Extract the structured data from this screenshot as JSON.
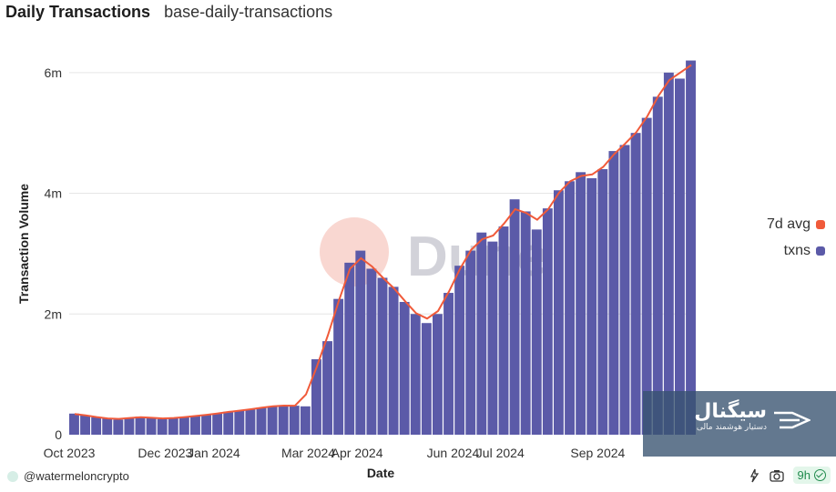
{
  "header": {
    "title": "Daily Transactions",
    "subtitle": "base-daily-transactions"
  },
  "chart_data": {
    "type": "bar",
    "xlabel": "Date",
    "ylabel": "Transaction Volume",
    "x_range": [
      "2023-10-01",
      "2024-10-31"
    ],
    "ylim": [
      0,
      6600000
    ],
    "y_ticks": [
      0,
      2000000,
      4000000,
      6000000
    ],
    "y_tick_labels": [
      "0",
      "2m",
      "4m",
      "6m"
    ],
    "x_tick_dates": [
      "2023-10-01",
      "2023-12-01",
      "2024-01-01",
      "2024-03-01",
      "2024-04-01",
      "2024-06-01",
      "2024-07-01",
      "2024-09-01"
    ],
    "x_tick_labels": [
      "Oct 2023",
      "Dec 2023",
      "Jan 2024",
      "Mar 2024",
      "Apr 2024",
      "Jun 2024",
      "Jul 2024",
      "Sep 2024"
    ],
    "grid": true,
    "legend_position": "right",
    "series": [
      {
        "name": "7d avg",
        "type": "line",
        "color": "#f05a3a"
      },
      {
        "name": "txns",
        "type": "bar",
        "color": "#5b5aa8"
      }
    ],
    "weekly_txns": [
      [
        "2023-10-01",
        350000
      ],
      [
        "2023-10-08",
        320000
      ],
      [
        "2023-10-15",
        290000
      ],
      [
        "2023-10-22",
        270000
      ],
      [
        "2023-10-29",
        250000
      ],
      [
        "2023-11-05",
        280000
      ],
      [
        "2023-11-12",
        300000
      ],
      [
        "2023-11-19",
        280000
      ],
      [
        "2023-11-26",
        260000
      ],
      [
        "2023-12-03",
        280000
      ],
      [
        "2023-12-10",
        290000
      ],
      [
        "2023-12-17",
        310000
      ],
      [
        "2023-12-24",
        330000
      ],
      [
        "2023-12-31",
        350000
      ],
      [
        "2024-01-07",
        380000
      ],
      [
        "2024-01-14",
        400000
      ],
      [
        "2024-01-21",
        420000
      ],
      [
        "2024-01-28",
        450000
      ],
      [
        "2024-02-04",
        470000
      ],
      [
        "2024-02-11",
        490000
      ],
      [
        "2024-02-18",
        480000
      ],
      [
        "2024-02-25",
        470000
      ],
      [
        "2024-03-03",
        1250000
      ],
      [
        "2024-03-10",
        1550000
      ],
      [
        "2024-03-17",
        2250000
      ],
      [
        "2024-03-24",
        2850000
      ],
      [
        "2024-03-31",
        3050000
      ],
      [
        "2024-04-07",
        2750000
      ],
      [
        "2024-04-14",
        2600000
      ],
      [
        "2024-04-21",
        2450000
      ],
      [
        "2024-04-28",
        2200000
      ],
      [
        "2024-05-05",
        2000000
      ],
      [
        "2024-05-12",
        1850000
      ],
      [
        "2024-05-19",
        2000000
      ],
      [
        "2024-05-26",
        2350000
      ],
      [
        "2024-06-02",
        2800000
      ],
      [
        "2024-06-09",
        3050000
      ],
      [
        "2024-06-16",
        3350000
      ],
      [
        "2024-06-23",
        3200000
      ],
      [
        "2024-06-30",
        3450000
      ],
      [
        "2024-07-07",
        3900000
      ],
      [
        "2024-07-14",
        3700000
      ],
      [
        "2024-07-21",
        3400000
      ],
      [
        "2024-07-28",
        3750000
      ],
      [
        "2024-08-04",
        4050000
      ],
      [
        "2024-08-11",
        4200000
      ],
      [
        "2024-08-18",
        4350000
      ],
      [
        "2024-08-25",
        4250000
      ],
      [
        "2024-09-01",
        4400000
      ],
      [
        "2024-09-08",
        4700000
      ],
      [
        "2024-09-15",
        4800000
      ],
      [
        "2024-09-22",
        5000000
      ],
      [
        "2024-09-29",
        5250000
      ],
      [
        "2024-10-06",
        5600000
      ],
      [
        "2024-10-13",
        6000000
      ],
      [
        "2024-10-20",
        5900000
      ],
      [
        "2024-10-27",
        6200000
      ]
    ]
  },
  "watermark": {
    "brand": "Dune",
    "overlay_title": "سیگنال",
    "overlay_subtitle": "دستیار هوشمند مالی"
  },
  "footer": {
    "author": "@watermeloncrypto",
    "refresh": "9h",
    "icons": [
      "api-icon",
      "camera-icon",
      "check-icon"
    ]
  },
  "colors": {
    "bar": "#5b5aa8",
    "line": "#f05a3a",
    "grid": "#e6e6e6"
  }
}
